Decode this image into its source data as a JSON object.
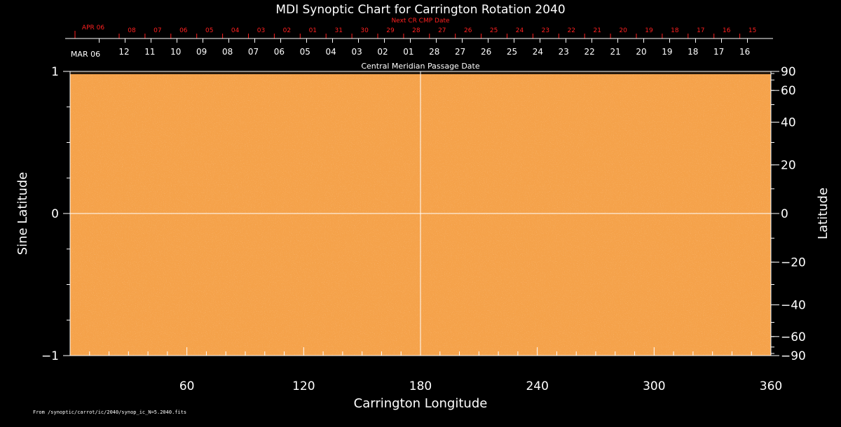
{
  "chart_data": {
    "type": "heatmap",
    "title": "MDI Synoptic Chart for Carrington Rotation 2040",
    "xlabel": "Carrington Longitude",
    "ylabel_left": "Sine Latitude",
    "ylabel_right": "Latitude",
    "xlim": [
      0,
      360
    ],
    "ylim": [
      -1,
      1
    ],
    "x_ticks": [
      "60",
      "120",
      "180",
      "240",
      "300",
      "360"
    ],
    "x_tick_values": [
      60,
      120,
      180,
      240,
      300,
      360
    ],
    "y_left_ticks": [
      "1",
      "0",
      "−1"
    ],
    "y_left_tick_values": [
      1,
      0,
      -1
    ],
    "y_right_ticks": [
      "90",
      "60",
      "40",
      "20",
      "0",
      "−20",
      "−40",
      "−60",
      "−90"
    ],
    "y_right_tick_values": [
      90,
      60,
      40,
      20,
      0,
      -20,
      -40,
      -60,
      -90
    ],
    "cmp_axis": {
      "label": "Central Meridian Passage Date",
      "start_label": "MAR 06",
      "dates": [
        "12",
        "11",
        "10",
        "09",
        "08",
        "07",
        "06",
        "05",
        "04",
        "03",
        "02",
        "01",
        "28",
        "27",
        "26",
        "25",
        "24",
        "23",
        "22",
        "21",
        "20",
        "19",
        "18",
        "17",
        "16"
      ]
    },
    "next_cr_axis": {
      "label": "Next CR CMP Date",
      "start_label": "APR 06",
      "dates": [
        "08",
        "07",
        "06",
        "05",
        "04",
        "03",
        "02",
        "01",
        "31",
        "30",
        "29",
        "28",
        "27",
        "26",
        "25",
        "24",
        "23",
        "22",
        "21",
        "20",
        "19",
        "18",
        "17",
        "16",
        "15"
      ]
    },
    "field_color": "#f5a24a",
    "crosshair": {
      "x": 180,
      "y": 0
    },
    "footer": "From /synoptic/carrot/ic/2040/synop_ic_N=5.2040.fits"
  }
}
